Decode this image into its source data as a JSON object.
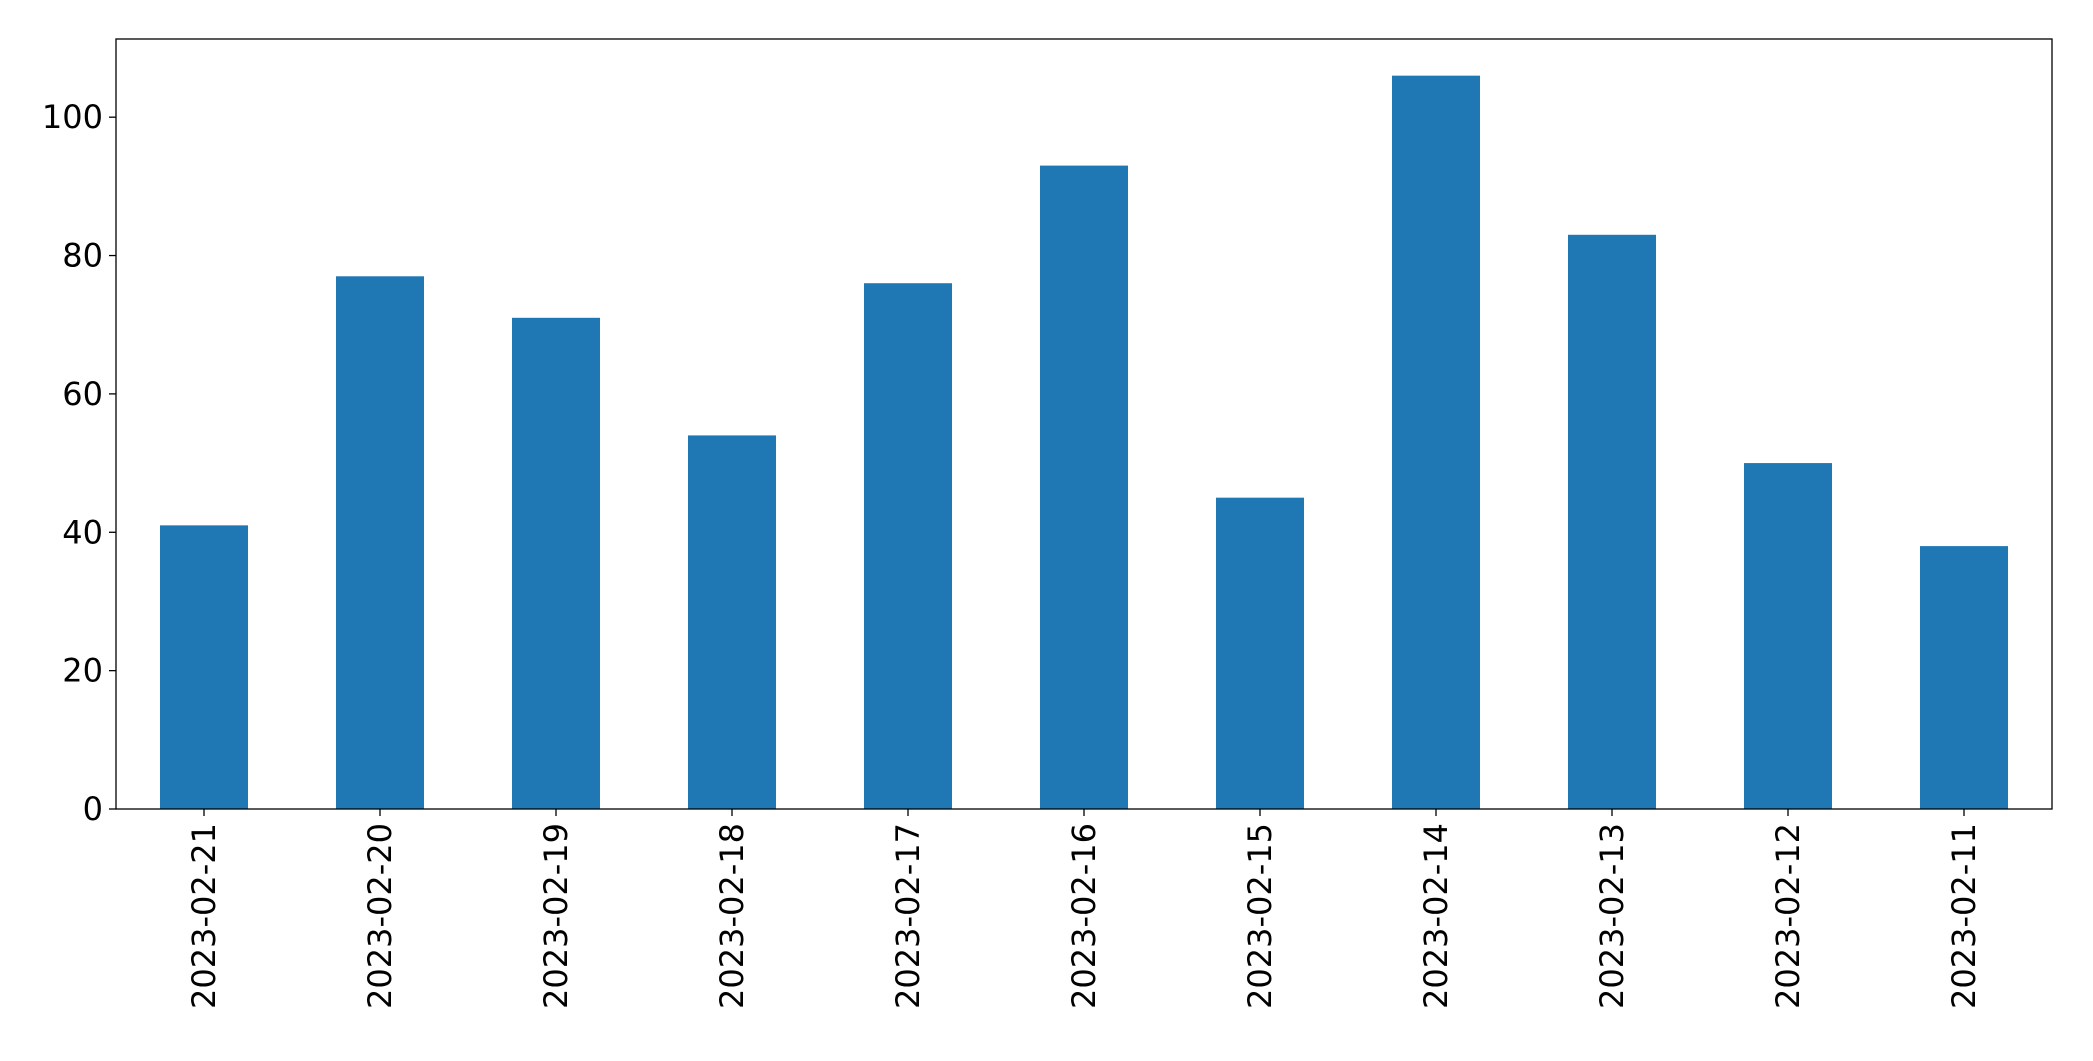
{
  "chart_data": {
    "type": "bar",
    "categories": [
      "2023-02-21",
      "2023-02-20",
      "2023-02-19",
      "2023-02-18",
      "2023-02-17",
      "2023-02-16",
      "2023-02-15",
      "2023-02-14",
      "2023-02-13",
      "2023-02-12",
      "2023-02-11"
    ],
    "values": [
      41,
      77,
      71,
      54,
      76,
      93,
      45,
      106,
      83,
      50,
      38
    ],
    "color": "#1f77b4",
    "ylim": [
      0,
      111.3
    ],
    "yticks": [
      0,
      20,
      40,
      60,
      80,
      100
    ],
    "grid": false
  }
}
